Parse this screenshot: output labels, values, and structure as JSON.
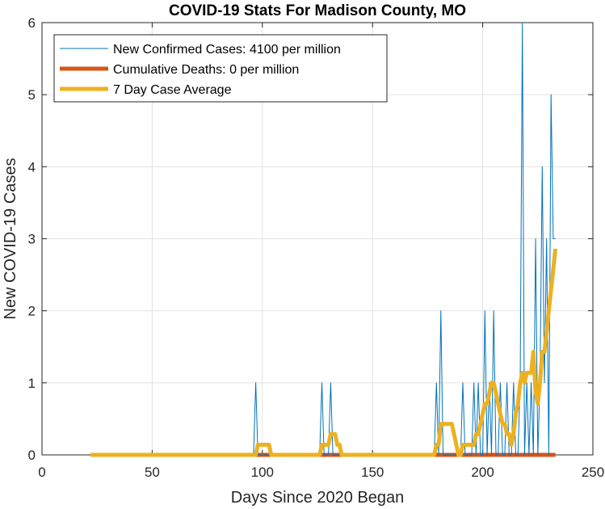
{
  "chart_data": {
    "type": "line",
    "title": "COVID-19 Stats For Madison County, MO",
    "xlabel": "Days Since 2020 Began",
    "ylabel": "New COVID-19 Cases",
    "xlim": [
      0,
      250
    ],
    "ylim": [
      0,
      6
    ],
    "xticks": [
      0,
      50,
      100,
      150,
      200,
      250
    ],
    "yticks": [
      0,
      1,
      2,
      3,
      4,
      5,
      6
    ],
    "grid": true,
    "legend_position": "top-left",
    "series": [
      {
        "name": "New Confirmed Cases: 4100 per million",
        "color": "#0072BD",
        "style": "thin",
        "x": [
          22,
          96,
          97,
          98,
          99,
          126,
          127,
          128,
          130,
          131,
          132,
          178,
          179,
          180,
          181,
          182,
          183,
          190,
          191,
          192,
          195,
          196,
          197,
          198,
          199,
          200,
          201,
          202,
          203,
          204,
          205,
          206,
          207,
          208,
          209,
          210,
          211,
          212,
          213,
          214,
          215,
          216,
          217,
          218,
          219,
          220,
          221,
          222,
          223,
          224,
          225,
          226,
          227,
          228,
          229,
          230,
          231,
          232,
          233
        ],
        "y": [
          0,
          0,
          1,
          0,
          0,
          0,
          1,
          0,
          0,
          1,
          0,
          0,
          1,
          0,
          2,
          0,
          0,
          0,
          1,
          0,
          0,
          1,
          0,
          1,
          0,
          0,
          2,
          0,
          1,
          0,
          2,
          0,
          0,
          1,
          0,
          0,
          1,
          0,
          0,
          1,
          0,
          0,
          1,
          6,
          0,
          1,
          0,
          1,
          0,
          3,
          0,
          1,
          4,
          1,
          3,
          0,
          5,
          3,
          3
        ]
      },
      {
        "name": "Cumulative Deaths: 0 per million",
        "color": "#D95319",
        "style": "thick",
        "x": [
          22,
          233
        ],
        "y": [
          0,
          0
        ]
      },
      {
        "name": "7 Day Case Average",
        "color": "#EDB120",
        "style": "thick",
        "x": [
          22,
          97,
          98,
          102,
          103,
          104,
          126,
          127,
          128,
          130,
          131,
          133,
          134,
          135,
          136,
          178,
          179,
          180,
          181,
          182,
          186,
          187,
          188,
          189,
          190,
          191,
          195,
          196,
          197,
          198,
          199,
          200,
          201,
          202,
          203,
          204,
          205,
          206,
          207,
          208,
          209,
          210,
          211,
          212,
          213,
          214,
          215,
          216,
          217,
          218,
          219,
          220,
          221,
          222,
          223,
          224,
          225,
          226,
          227,
          228,
          229,
          230,
          231,
          232,
          233
        ],
        "y": [
          0,
          0,
          0.14,
          0.14,
          0.14,
          0,
          0,
          0.14,
          0.14,
          0.14,
          0.29,
          0.29,
          0.14,
          0.14,
          0,
          0,
          0.14,
          0.14,
          0.43,
          0.43,
          0.43,
          0.29,
          0.14,
          0,
          0,
          0.14,
          0.14,
          0.14,
          0.29,
          0.29,
          0.43,
          0.57,
          0.71,
          0.71,
          0.86,
          1.0,
          1.0,
          0.86,
          0.71,
          0.57,
          0.43,
          0.43,
          0.29,
          0.29,
          0.14,
          0.29,
          0.57,
          0.71,
          1.0,
          1.14,
          1.0,
          1.14,
          1.14,
          1.14,
          1.43,
          0.86,
          0.71,
          1.0,
          1.43,
          1.43,
          1.71,
          2.0,
          2.29,
          2.57,
          2.86
        ]
      }
    ]
  }
}
